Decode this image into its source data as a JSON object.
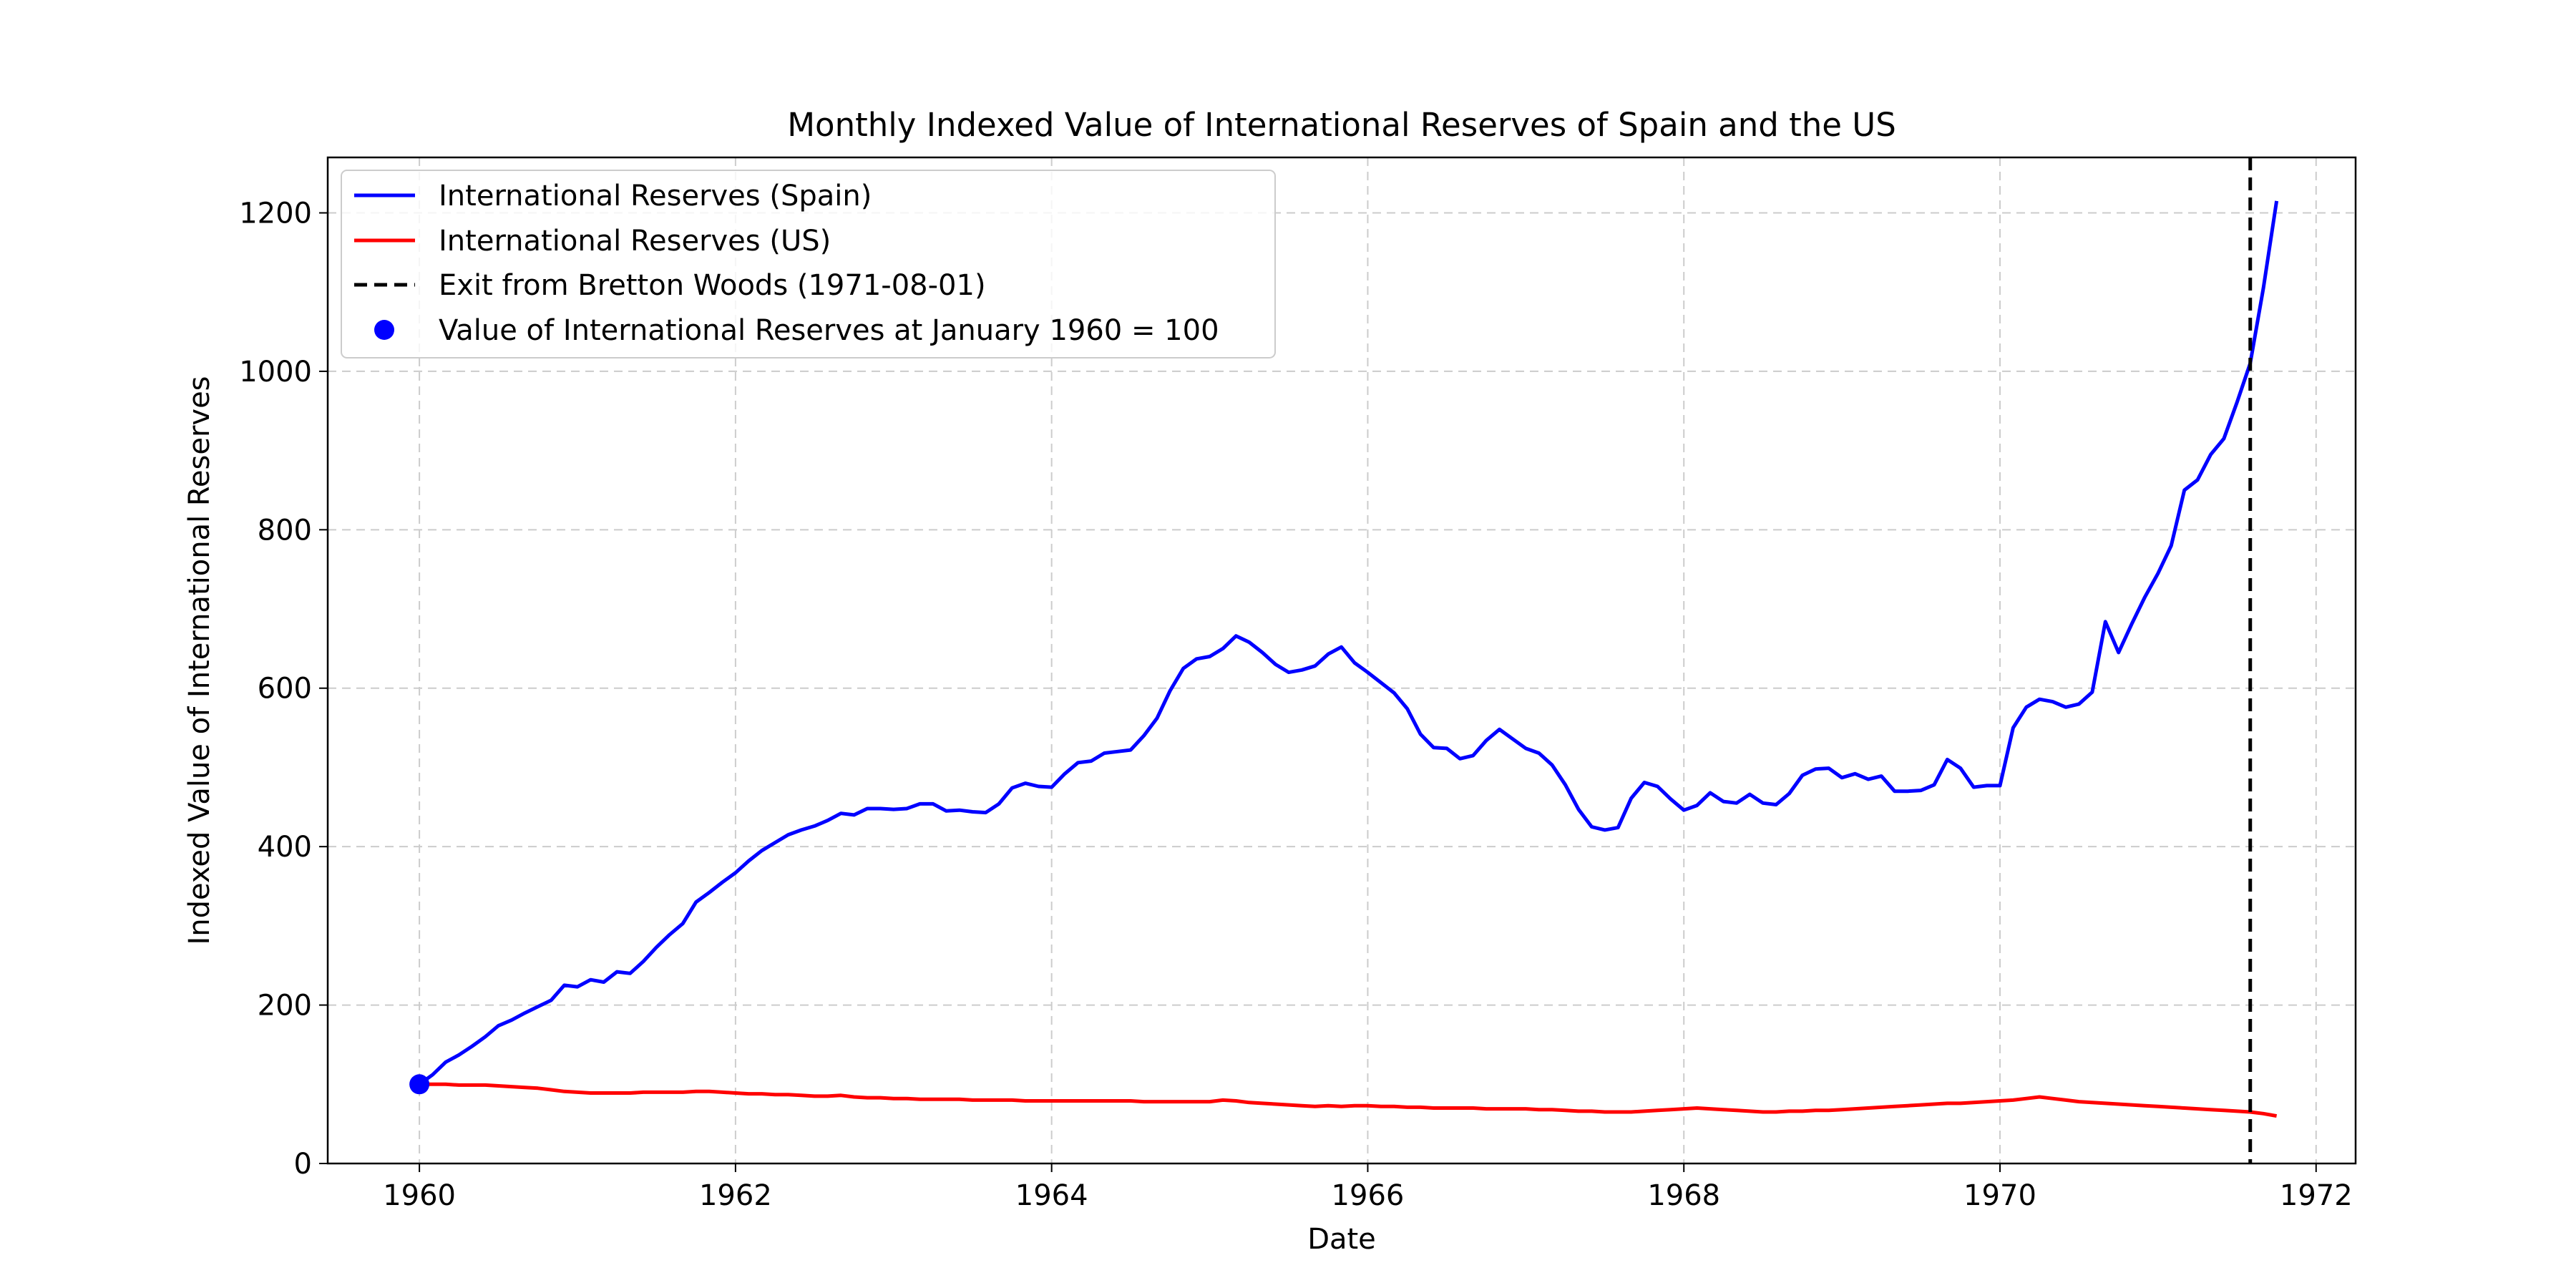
{
  "chart_data": {
    "type": "line",
    "title": "Monthly Indexed Value of International Reserves of Spain and the US",
    "xlabel": "Date",
    "ylabel": "Indexed Value of International Reserves",
    "xlim": [
      1959.42,
      1972.25
    ],
    "ylim": [
      0,
      1270
    ],
    "x_ticks": [
      1960,
      1962,
      1964,
      1966,
      1968,
      1970,
      1972
    ],
    "y_ticks": [
      0,
      200,
      400,
      600,
      800,
      1000,
      1200
    ],
    "grid": true,
    "legend_position": "top-left",
    "base_point": {
      "label": "Value of International Reserves at January 1960 = 100",
      "date": "1960-01",
      "value": 100,
      "color": "#0000ff"
    },
    "vline": {
      "label": "Exit from Bretton Woods (1971-08-01)",
      "date": "1971-08-01",
      "color": "#000000",
      "style": "dashed"
    },
    "series_start": "1960-01",
    "series_frequency": "monthly",
    "series": [
      {
        "name": "International Reserves (Spain)",
        "color": "#0000ff",
        "values": [
          100,
          112,
          128,
          137,
          148,
          160,
          174,
          181,
          190,
          198,
          206,
          225,
          223,
          232,
          229,
          242,
          240,
          255,
          273,
          289,
          303,
          330,
          342,
          355,
          367,
          382,
          395,
          405,
          415,
          421,
          426,
          433,
          442,
          440,
          448,
          448,
          447,
          448,
          454,
          454,
          445,
          446,
          444,
          443,
          454,
          474,
          480,
          476,
          475,
          492,
          506,
          508,
          518,
          520,
          522,
          540,
          562,
          597,
          625,
          637,
          640,
          650,
          666,
          658,
          645,
          630,
          620,
          623,
          628,
          643,
          652,
          632,
          620,
          607,
          594,
          574,
          542,
          525,
          524,
          511,
          515,
          534,
          548,
          536,
          524,
          518,
          503,
          478,
          447,
          425,
          421,
          424,
          461,
          481,
          476,
          460,
          446,
          452,
          468,
          457,
          455,
          466,
          455,
          453,
          467,
          490,
          498,
          499,
          487,
          492,
          485,
          489,
          470,
          470,
          471,
          478,
          510,
          499,
          475,
          477,
          477,
          550,
          576,
          586,
          583,
          576,
          580,
          595,
          684,
          645,
          681,
          715,
          745,
          780,
          850,
          863,
          895,
          915,
          961,
          1010,
          1105,
          1215
        ]
      },
      {
        "name": "International Reserves (US)",
        "color": "#ff0000",
        "values": [
          100,
          100,
          100,
          99,
          99,
          99,
          98,
          97,
          96,
          95,
          93,
          91,
          90,
          89,
          89,
          89,
          89,
          90,
          90,
          90,
          90,
          91,
          91,
          90,
          89,
          88,
          88,
          87,
          87,
          86,
          85,
          85,
          86,
          84,
          83,
          83,
          82,
          82,
          81,
          81,
          81,
          81,
          80,
          80,
          80,
          80,
          79,
          79,
          79,
          79,
          79,
          79,
          79,
          79,
          79,
          78,
          78,
          78,
          78,
          78,
          78,
          80,
          79,
          77,
          76,
          75,
          74,
          73,
          72,
          73,
          72,
          73,
          73,
          72,
          72,
          71,
          71,
          70,
          70,
          70,
          70,
          69,
          69,
          69,
          69,
          68,
          68,
          67,
          66,
          66,
          65,
          65,
          65,
          66,
          67,
          68,
          69,
          70,
          69,
          68,
          67,
          66,
          65,
          65,
          66,
          66,
          67,
          67,
          68,
          69,
          70,
          71,
          72,
          73,
          74,
          75,
          76,
          76,
          77,
          78,
          79,
          80,
          82,
          84,
          82,
          80,
          78,
          77,
          76,
          75,
          74,
          73,
          72,
          71,
          70,
          69,
          68,
          67,
          66,
          65,
          63,
          60
        ]
      }
    ]
  }
}
